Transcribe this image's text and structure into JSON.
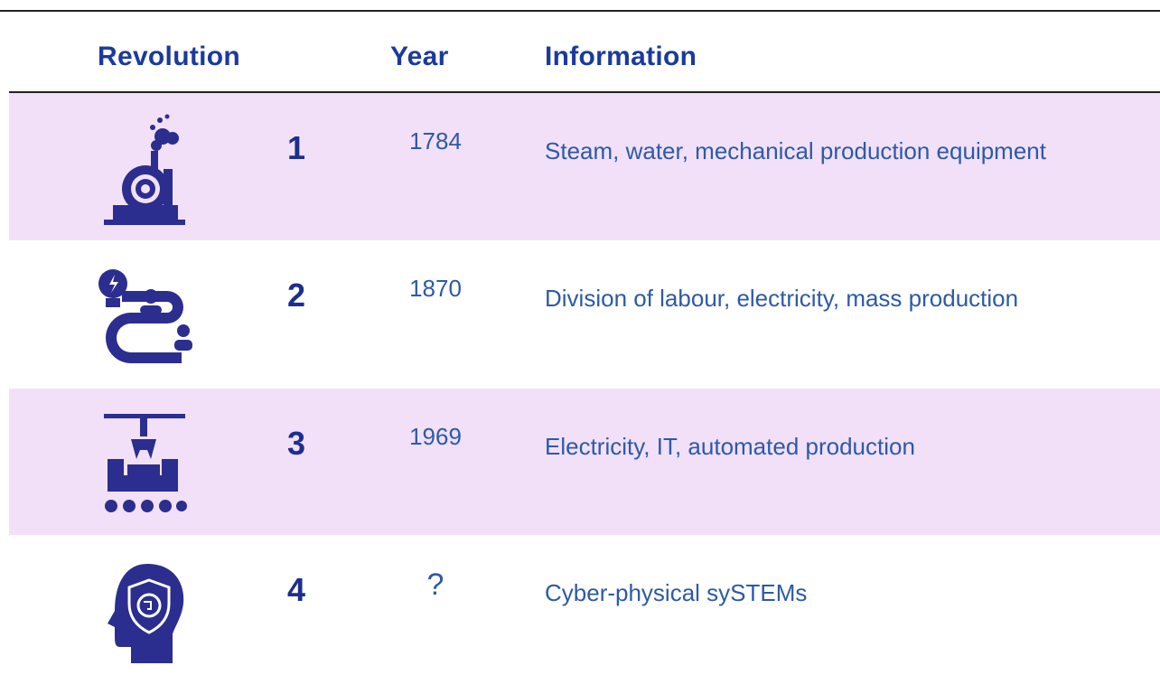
{
  "table": {
    "header": [
      "Revolution",
      "Year",
      "Information"
    ],
    "rows": [
      [
        "1",
        "1784",
        "Steam, water, mechanical production equipment"
      ],
      [
        "2",
        "1870",
        "Division of labour, electricity, mass production"
      ],
      [
        "3",
        "1969",
        "Electricity, IT, automated production"
      ],
      [
        "4",
        "?",
        "Cyber-physical sySTEMs"
      ]
    ]
  }
}
